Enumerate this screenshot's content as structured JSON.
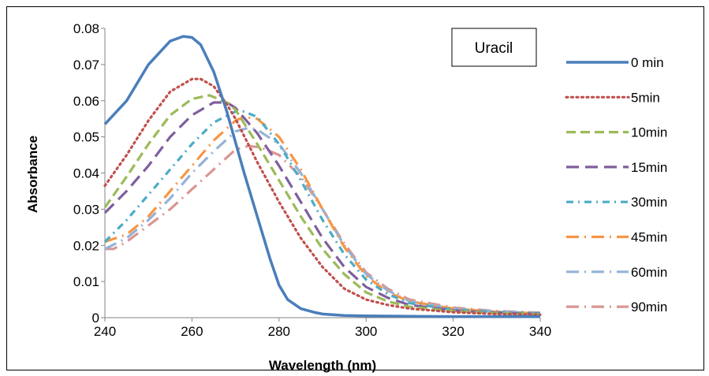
{
  "chart_data": {
    "type": "line",
    "title": "",
    "xlabel": "Wavelength (nm)",
    "ylabel": "Absorbance",
    "xlim": [
      240,
      340
    ],
    "ylim": [
      0,
      0.08
    ],
    "xticks": [
      "240",
      "260",
      "280",
      "300",
      "320",
      "340"
    ],
    "yticks": [
      "0",
      "0.01",
      "0.02",
      "0.03",
      "0.04",
      "0.05",
      "0.06",
      "0.07",
      "0.08"
    ],
    "annotation": "Uracil",
    "grid": false,
    "legend_position": "right",
    "series": [
      {
        "name": "0 min",
        "color": "#4a7ebb",
        "style": "solid",
        "x": [
          240,
          245,
          250,
          255,
          258,
          260,
          262,
          265,
          268,
          270,
          272,
          275,
          278,
          280,
          282,
          285,
          288,
          290,
          295,
          300,
          310,
          320,
          330,
          340
        ],
        "y": [
          0.0535,
          0.06,
          0.07,
          0.0765,
          0.0778,
          0.0775,
          0.0755,
          0.068,
          0.057,
          0.0485,
          0.04,
          0.028,
          0.016,
          0.009,
          0.005,
          0.0025,
          0.0015,
          0.001,
          0.0006,
          0.0005,
          0.0004,
          0.0003,
          0.0003,
          0.0003
        ]
      },
      {
        "name": "5min",
        "color": "#c0504d",
        "style": "dotted",
        "x": [
          240,
          245,
          250,
          255,
          260,
          262,
          265,
          268,
          270,
          275,
          280,
          285,
          290,
          295,
          300,
          305,
          310,
          320,
          330,
          340
        ],
        "y": [
          0.0365,
          0.045,
          0.0545,
          0.0625,
          0.066,
          0.066,
          0.064,
          0.059,
          0.055,
          0.043,
          0.032,
          0.022,
          0.014,
          0.008,
          0.005,
          0.0035,
          0.0025,
          0.0015,
          0.001,
          0.0008
        ]
      },
      {
        "name": "10min",
        "color": "#9bbb59",
        "style": "dashed",
        "x": [
          240,
          245,
          250,
          255,
          260,
          264,
          268,
          270,
          275,
          280,
          285,
          290,
          295,
          300,
          305,
          310,
          320,
          330,
          340
        ],
        "y": [
          0.0305,
          0.039,
          0.048,
          0.056,
          0.0605,
          0.0615,
          0.0595,
          0.0575,
          0.048,
          0.038,
          0.028,
          0.019,
          0.012,
          0.007,
          0.0045,
          0.003,
          0.0018,
          0.0012,
          0.0009
        ]
      },
      {
        "name": "15min",
        "color": "#7f5f9e",
        "style": "longdash",
        "x": [
          240,
          245,
          250,
          255,
          260,
          265,
          268,
          270,
          275,
          280,
          285,
          290,
          295,
          300,
          305,
          310,
          320,
          330,
          340
        ],
        "y": [
          0.029,
          0.035,
          0.042,
          0.05,
          0.056,
          0.0595,
          0.0595,
          0.058,
          0.051,
          0.042,
          0.032,
          0.022,
          0.014,
          0.0085,
          0.0055,
          0.0035,
          0.002,
          0.0013,
          0.001
        ]
      },
      {
        "name": "30min",
        "color": "#4bacc6",
        "style": "dashdot",
        "x": [
          240,
          245,
          250,
          255,
          260,
          265,
          270,
          272,
          275,
          280,
          285,
          290,
          295,
          300,
          305,
          310,
          320,
          330,
          340
        ],
        "y": [
          0.021,
          0.027,
          0.034,
          0.041,
          0.048,
          0.054,
          0.057,
          0.057,
          0.0555,
          0.048,
          0.038,
          0.027,
          0.0175,
          0.0105,
          0.0065,
          0.004,
          0.0022,
          0.0015,
          0.0012
        ]
      },
      {
        "name": "45min",
        "color": "#f79646",
        "style": "longdashdot",
        "x": [
          240,
          245,
          250,
          255,
          260,
          265,
          270,
          272,
          275,
          280,
          285,
          290,
          295,
          300,
          305,
          310,
          320,
          330,
          340
        ],
        "y": [
          0.021,
          0.023,
          0.028,
          0.035,
          0.042,
          0.049,
          0.0545,
          0.0555,
          0.055,
          0.05,
          0.041,
          0.03,
          0.0195,
          0.0115,
          0.007,
          0.0045,
          0.0025,
          0.0016,
          0.0012
        ]
      },
      {
        "name": "60min",
        "color": "#95b3d7",
        "style": "longdashdot",
        "x": [
          240,
          245,
          250,
          255,
          260,
          265,
          270,
          273,
          275,
          280,
          285,
          290,
          295,
          300,
          305,
          310,
          320,
          330,
          340
        ],
        "y": [
          0.019,
          0.022,
          0.027,
          0.033,
          0.04,
          0.046,
          0.0515,
          0.0525,
          0.052,
          0.048,
          0.04,
          0.03,
          0.02,
          0.012,
          0.0075,
          0.0045,
          0.0025,
          0.0017,
          0.0013
        ]
      },
      {
        "name": "90min",
        "color": "#d99694",
        "style": "longdashdot",
        "x": [
          240,
          242,
          245,
          250,
          255,
          260,
          265,
          270,
          273,
          276,
          280,
          285,
          290,
          295,
          300,
          305,
          310,
          320,
          330,
          340
        ],
        "y": [
          0.019,
          0.019,
          0.021,
          0.0255,
          0.03,
          0.0355,
          0.041,
          0.0465,
          0.0475,
          0.047,
          0.045,
          0.039,
          0.03,
          0.0205,
          0.0125,
          0.008,
          0.005,
          0.0028,
          0.0018,
          0.0014
        ]
      }
    ]
  }
}
